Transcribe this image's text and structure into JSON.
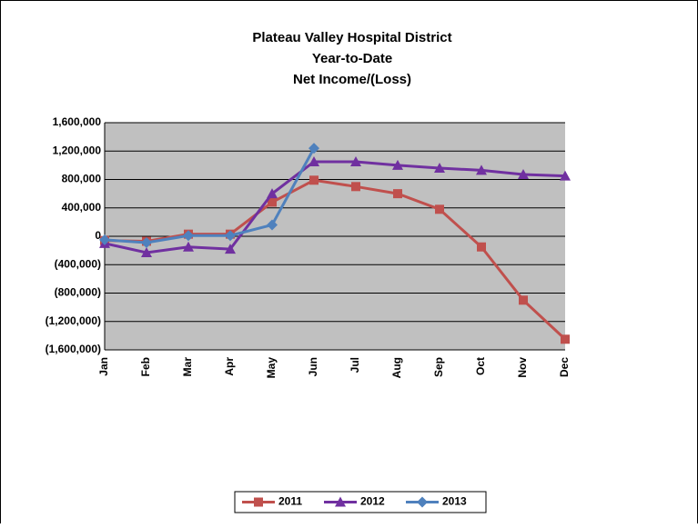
{
  "chart_data": {
    "type": "line",
    "title": [
      "Plateau Valley Hospital District",
      "Year-to-Date",
      "Net Income/(Loss)"
    ],
    "categories": [
      "Jan",
      "Feb",
      "Mar",
      "Apr",
      "May",
      "Jun",
      "Jul",
      "Aug",
      "Sep",
      "Oct",
      "Nov",
      "Dec"
    ],
    "series": [
      {
        "name": "2011",
        "color": "#c0504d",
        "marker": "square",
        "values": [
          -60000,
          -70000,
          30000,
          30000,
          480000,
          790000,
          700000,
          600000,
          380000,
          -150000,
          -900000,
          -1450000
        ]
      },
      {
        "name": "2012",
        "color": "#7030a0",
        "marker": "triangle",
        "values": [
          -100000,
          -230000,
          -150000,
          -180000,
          600000,
          1050000,
          1050000,
          1000000,
          960000,
          930000,
          870000,
          850000
        ]
      },
      {
        "name": "2013",
        "color": "#4f81bd",
        "marker": "diamond",
        "values": [
          -50000,
          -90000,
          10000,
          10000,
          160000,
          1240000,
          null,
          null,
          null,
          null,
          null,
          null
        ]
      }
    ],
    "ylim": [
      -1600000,
      1600000
    ],
    "yticks": [
      {
        "value": -1600000,
        "label": "(1,600,000)"
      },
      {
        "value": -1200000,
        "label": "(1,200,000)"
      },
      {
        "value": -800000,
        "label": "(800,000)"
      },
      {
        "value": -400000,
        "label": "(400,000)"
      },
      0,
      {
        "value": 400000,
        "label": "400,000"
      },
      {
        "value": 800000,
        "label": "800,000"
      },
      {
        "value": 1200000,
        "label": "1,200,000"
      },
      {
        "value": 1600000,
        "label": "1,600,000"
      }
    ],
    "grid": true,
    "legend": "bottom"
  }
}
